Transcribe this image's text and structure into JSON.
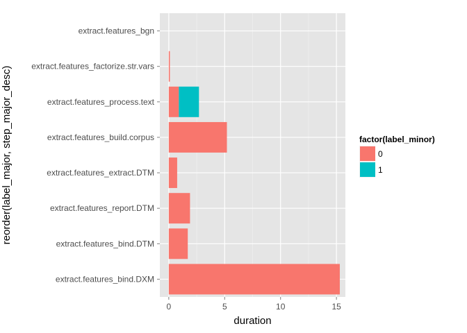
{
  "chart_data": {
    "type": "bar",
    "orientation": "horizontal",
    "stacked": true,
    "xlabel": "duration",
    "ylabel": "reorder(label_major, step_major_desc)",
    "xlim": [
      -0.8,
      15.8
    ],
    "x_ticks": [
      0,
      5,
      10,
      15
    ],
    "grid": true,
    "legend": {
      "title": "factor(label_minor)",
      "placement": "right",
      "entries": [
        {
          "label": "0",
          "color": "#F8766D"
        },
        {
          "label": "1",
          "color": "#00BFC4"
        }
      ]
    },
    "categories": [
      "extract.features_bgn",
      "extract.features_factorize.str.vars",
      "extract.features_process.text",
      "extract.features_build.corpus",
      "extract.features_extract.DTM",
      "extract.features_report.DTM",
      "extract.features_bind.DTM",
      "extract.features_bind.DXM"
    ],
    "series": [
      {
        "name": "0",
        "color": "#F8766D",
        "values": [
          0.0,
          0.1,
          0.9,
          5.2,
          0.75,
          1.9,
          1.7,
          15.3
        ]
      },
      {
        "name": "1",
        "color": "#00BFC4",
        "values": [
          0.0,
          0.0,
          1.8,
          0.0,
          0.0,
          0.0,
          0.0,
          0.0
        ]
      }
    ]
  }
}
